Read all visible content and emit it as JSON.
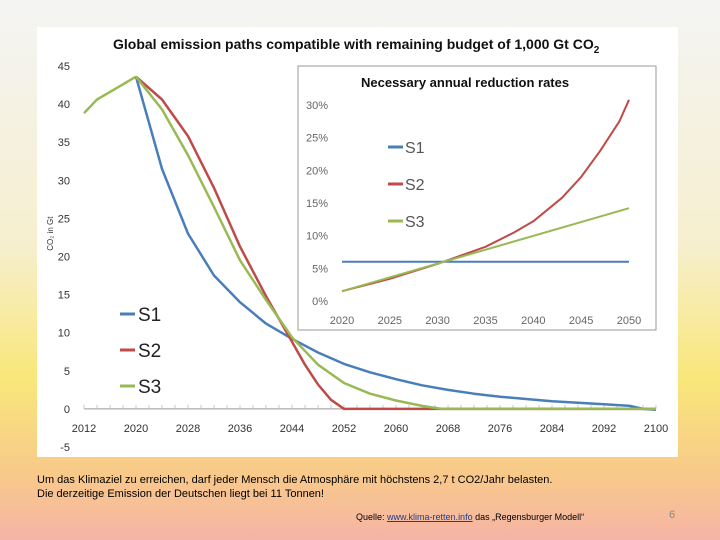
{
  "chart_data": [
    {
      "type": "line",
      "title": "Global emission paths compatible with remaining budget of 1,000 Gt CO",
      "title_subscript": "2",
      "xlabel": "",
      "ylabel": "CO₂ in Gt",
      "xlim": [
        2012,
        2100
      ],
      "ylim": [
        -5,
        45
      ],
      "xticks": [
        2012,
        2020,
        2028,
        2036,
        2044,
        2052,
        2060,
        2068,
        2076,
        2084,
        2092,
        2100
      ],
      "yticks": [
        -5,
        0,
        5,
        10,
        15,
        20,
        25,
        30,
        35,
        40,
        45
      ],
      "legend": [
        "S1",
        "S2",
        "S3"
      ],
      "legend_position": "bottom-left",
      "colors": {
        "S1": "#4a7ebb",
        "S2": "#be4b48",
        "S3": "#98b954"
      },
      "history": {
        "name": "historical",
        "color": "#98b954",
        "x": [
          2012,
          2014,
          2016,
          2018,
          2020
        ],
        "y": [
          38.8,
          40.6,
          41.6,
          42.6,
          43.6
        ]
      },
      "series": [
        {
          "name": "S1",
          "x": [
            2020,
            2024,
            2028,
            2032,
            2036,
            2040,
            2044,
            2048,
            2052,
            2056,
            2060,
            2064,
            2068,
            2072,
            2076,
            2080,
            2084,
            2088,
            2092,
            2096,
            2098,
            2100
          ],
          "y": [
            43.6,
            31.5,
            23.0,
            17.5,
            14.0,
            11.2,
            9.2,
            7.4,
            5.9,
            4.8,
            3.9,
            3.1,
            2.5,
            2.0,
            1.6,
            1.3,
            1.0,
            0.8,
            0.6,
            0.4,
            0.0,
            -0.1
          ]
        },
        {
          "name": "S2",
          "x": [
            2020,
            2024,
            2028,
            2032,
            2036,
            2040,
            2044,
            2046,
            2048,
            2050,
            2052,
            2060,
            2070,
            2080,
            2090,
            2100
          ],
          "y": [
            43.6,
            40.6,
            35.8,
            29.0,
            21.3,
            14.8,
            8.8,
            5.8,
            3.2,
            1.2,
            0.0,
            0.0,
            0.0,
            0.0,
            0.0,
            0.0
          ]
        },
        {
          "name": "S3",
          "x": [
            2020,
            2024,
            2028,
            2032,
            2036,
            2040,
            2044,
            2048,
            2052,
            2056,
            2060,
            2064,
            2067,
            2070,
            2080,
            2090,
            2100
          ],
          "y": [
            43.6,
            39.3,
            33.3,
            26.5,
            19.5,
            14.3,
            9.4,
            5.8,
            3.4,
            2.0,
            1.1,
            0.4,
            0.0,
            0.0,
            0.0,
            0.0,
            0.0
          ]
        }
      ]
    },
    {
      "type": "line",
      "title": "Necessary annual reduction rates",
      "xlabel": "",
      "ylabel": "",
      "xlim": [
        2020,
        2050
      ],
      "ylim": [
        0,
        30
      ],
      "xticks": [
        2020,
        2025,
        2030,
        2035,
        2040,
        2045,
        2050
      ],
      "yticks": [
        0,
        5,
        10,
        15,
        20,
        25,
        30
      ],
      "ytick_labels": [
        "0%",
        "5%",
        "10%",
        "15%",
        "20%",
        "25%",
        "30%"
      ],
      "legend": [
        "S1",
        "S2",
        "S3"
      ],
      "legend_position": "top-left",
      "series": [
        {
          "name": "S1",
          "x": [
            2020,
            2050
          ],
          "y": [
            6.0,
            6.0
          ]
        },
        {
          "name": "S2",
          "x": [
            2020,
            2025,
            2030,
            2035,
            2038,
            2040,
            2043,
            2045,
            2047,
            2049,
            2050
          ],
          "y": [
            1.5,
            3.4,
            5.7,
            8.3,
            10.5,
            12.2,
            15.8,
            19.0,
            23.0,
            27.5,
            30.8
          ]
        },
        {
          "name": "S3",
          "x": [
            2020,
            2050
          ],
          "y": [
            1.5,
            14.2
          ]
        }
      ]
    }
  ],
  "caption": {
    "line1": "Um das Klimaziel zu erreichen, darf jeder Mensch die Atmosphäre mit höchstens 2,7 t CO2/Jahr belasten.",
    "line2": "Die derzeitige Emission der Deutschen liegt bei 11 Tonnen!"
  },
  "source": {
    "prefix": "Quelle:",
    "link": "www.klima-retten.info",
    "suffix": "das „Regensburger Modell“"
  },
  "page_number": "6"
}
